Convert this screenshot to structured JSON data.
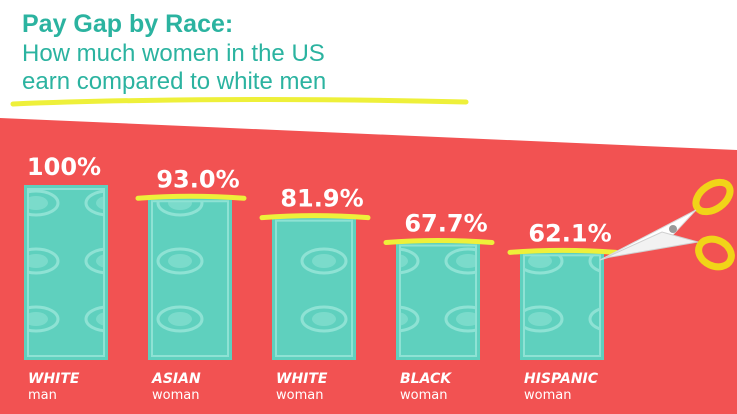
{
  "header": {
    "title": "Pay Gap by Race:",
    "subtitle_line1": "How much women in the US",
    "subtitle_line2": "earn compared to white men"
  },
  "colors": {
    "background_band": "#f25252",
    "bill": "#5fd0be",
    "bill_inner": "#8ee2d4",
    "highlight": "#eef03a",
    "title": "#2bb3a0"
  },
  "icons": {
    "cut_marker": "scissors-icon",
    "bill_graphic": "dollar-bill-icon"
  },
  "chart_data": {
    "type": "bar",
    "categories": [
      "WHITE man",
      "ASIAN woman",
      "WHITE woman",
      "BLACK woman",
      "HISPANIC woman"
    ],
    "category_group": [
      "WHITE",
      "ASIAN",
      "WHITE",
      "BLACK",
      "HISPANIC"
    ],
    "category_sub": [
      "man",
      "woman",
      "woman",
      "woman",
      "woman"
    ],
    "values": [
      100,
      93.0,
      81.9,
      67.7,
      62.1
    ],
    "value_labels": [
      "100%",
      "93.0%",
      "81.9%",
      "67.7%",
      "62.1%"
    ],
    "unit": "%",
    "ylim": [
      0,
      100
    ],
    "grid": false,
    "legend": "none"
  }
}
